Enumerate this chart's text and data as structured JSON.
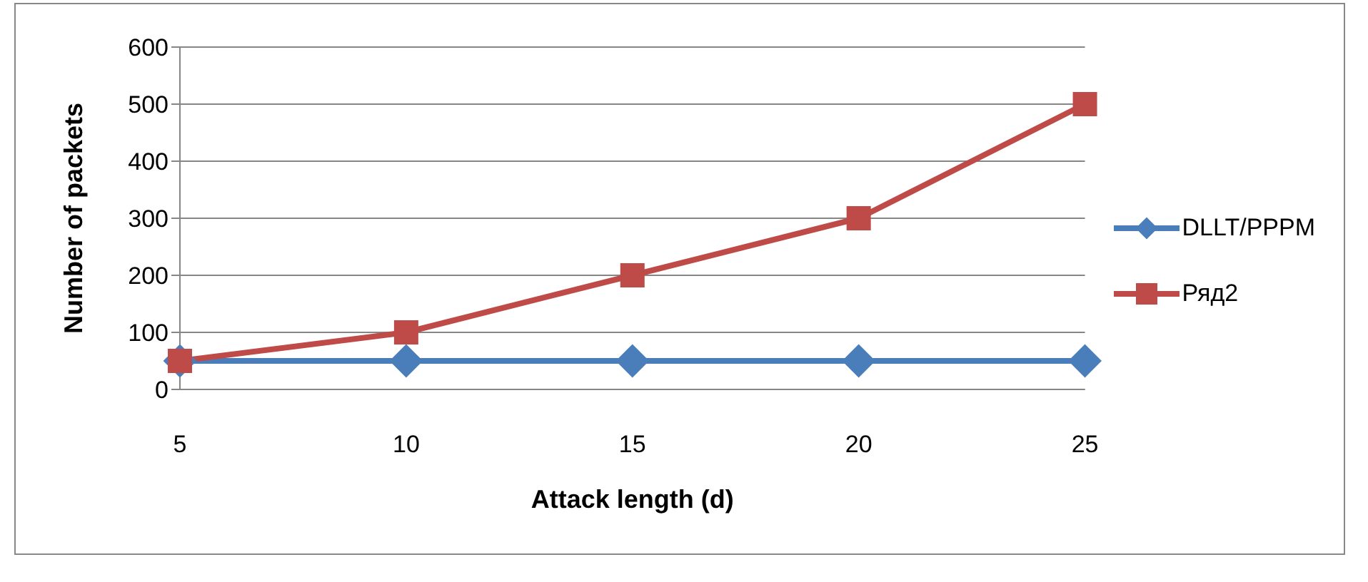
{
  "chart_data": {
    "type": "line",
    "xlabel": "Attack length (d)",
    "ylabel": "Number of packets",
    "categories": [
      "5",
      "10",
      "15",
      "20",
      "25"
    ],
    "series": [
      {
        "name": "DLLT/PPPM",
        "color": "#4a7ebb",
        "marker": "diamond",
        "values": [
          50,
          50,
          50,
          50,
          50
        ]
      },
      {
        "name": "Ряд2",
        "color": "#be4b48",
        "marker": "square",
        "values": [
          50,
          100,
          200,
          300,
          500
        ]
      }
    ],
    "ylim": [
      0,
      600
    ],
    "yticks": [
      0,
      100,
      200,
      300,
      400,
      500,
      600
    ],
    "grid": "y",
    "legend": "right",
    "line_style": "solid"
  }
}
